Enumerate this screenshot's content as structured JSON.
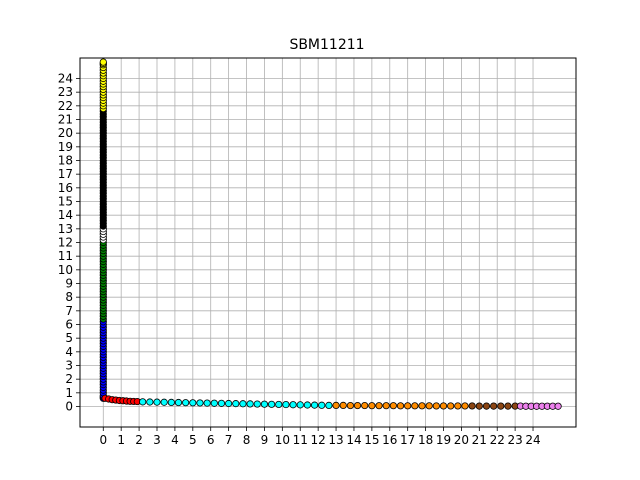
{
  "chart_data": {
    "type": "scatter",
    "title": "SBM11211",
    "xlabel": "",
    "ylabel": "",
    "xlim": [
      -1.3,
      26.4
    ],
    "ylim": [
      -1.5,
      25.5
    ],
    "xticks": [
      0,
      1,
      2,
      3,
      4,
      5,
      6,
      7,
      8,
      9,
      10,
      11,
      12,
      13,
      14,
      15,
      16,
      17,
      18,
      19,
      20,
      21,
      22,
      23,
      24
    ],
    "yticks": [
      0,
      1,
      2,
      3,
      4,
      5,
      6,
      7,
      8,
      9,
      10,
      11,
      12,
      13,
      14,
      15,
      16,
      17,
      18,
      19,
      20,
      21,
      22,
      23,
      24
    ],
    "grid": true,
    "legend": "none",
    "series": [
      {
        "color": "#0000ff",
        "x": [
          0,
          0,
          0,
          0,
          0,
          0,
          0,
          0,
          0,
          0,
          0,
          0,
          0,
          0,
          0,
          0,
          0,
          0,
          0,
          0,
          0,
          0,
          0,
          0,
          0,
          0,
          0,
          0,
          0,
          0
        ],
        "y": [
          0.6,
          0.7,
          0.8,
          1.0,
          1.2,
          1.4,
          1.6,
          1.8,
          2.0,
          2.2,
          2.4,
          2.6,
          2.8,
          3.0,
          3.2,
          3.4,
          3.6,
          3.8,
          4.0,
          4.2,
          4.4,
          4.6,
          4.8,
          5.0,
          5.2,
          5.4,
          5.6,
          5.8,
          6.0,
          6.2
        ]
      },
      {
        "color": "#008000",
        "x": [
          0,
          0,
          0,
          0,
          0,
          0,
          0,
          0,
          0,
          0,
          0,
          0,
          0,
          0,
          0,
          0,
          0,
          0,
          0,
          0,
          0,
          0,
          0,
          0,
          0,
          0,
          0,
          0,
          0
        ],
        "y": [
          6.4,
          6.6,
          6.8,
          7.0,
          7.2,
          7.4,
          7.6,
          7.8,
          8.0,
          8.2,
          8.4,
          8.6,
          8.8,
          9.0,
          9.2,
          9.4,
          9.6,
          9.8,
          10.0,
          10.2,
          10.4,
          10.6,
          10.8,
          11.0,
          11.2,
          11.4,
          11.6,
          11.8,
          12.0
        ]
      },
      {
        "color": "#ffffff",
        "x": [
          0,
          0,
          0,
          0,
          0
        ],
        "y": [
          12.2,
          12.4,
          12.6,
          12.8,
          13.0
        ]
      },
      {
        "color": "#000000",
        "x": [
          0,
          0,
          0,
          0,
          0,
          0,
          0,
          0,
          0,
          0,
          0,
          0,
          0,
          0,
          0,
          0,
          0,
          0,
          0,
          0,
          0,
          0,
          0,
          0,
          0,
          0,
          0,
          0,
          0,
          0,
          0,
          0,
          0,
          0,
          0,
          0,
          0,
          0,
          0,
          0,
          0,
          0,
          0
        ],
        "y": [
          13.2,
          13.4,
          13.6,
          13.8,
          14.0,
          14.2,
          14.4,
          14.6,
          14.8,
          15.0,
          15.2,
          15.4,
          15.6,
          15.8,
          16.0,
          16.2,
          16.4,
          16.6,
          16.8,
          17.0,
          17.2,
          17.4,
          17.6,
          17.8,
          18.0,
          18.2,
          18.4,
          18.6,
          18.8,
          19.0,
          19.2,
          19.4,
          19.6,
          19.8,
          20.0,
          20.2,
          20.4,
          20.6,
          20.8,
          21.0,
          21.2,
          21.4,
          21.6
        ]
      },
      {
        "color": "#ffff00",
        "x": [
          0,
          0,
          0,
          0,
          0,
          0,
          0,
          0,
          0,
          0,
          0,
          0,
          0,
          0,
          0,
          0,
          0,
          0,
          0
        ],
        "y": [
          21.8,
          22.0,
          22.2,
          22.4,
          22.6,
          22.8,
          23.0,
          23.2,
          23.4,
          23.6,
          23.8,
          24.0,
          24.2,
          24.4,
          24.6,
          24.8,
          25.0,
          25.1,
          25.2
        ]
      },
      {
        "color": "#ff0000",
        "x": [
          0.1,
          0.3,
          0.5,
          0.7,
          0.9,
          1.1,
          1.3,
          1.5,
          1.7,
          1.9
        ],
        "y": [
          0.6,
          0.55,
          0.5,
          0.47,
          0.44,
          0.42,
          0.4,
          0.38,
          0.37,
          0.36
        ]
      },
      {
        "color": "#00ffff",
        "x": [
          2.2,
          2.6,
          3.0,
          3.4,
          3.8,
          4.2,
          4.6,
          5.0,
          5.4,
          5.8,
          6.2,
          6.6,
          7.0,
          7.4,
          7.8,
          8.2,
          8.6,
          9.0,
          9.4,
          9.8,
          10.2,
          10.6,
          11.0,
          11.4,
          11.8,
          12.2,
          12.6
        ],
        "y": [
          0.34,
          0.33,
          0.32,
          0.31,
          0.3,
          0.29,
          0.28,
          0.27,
          0.26,
          0.25,
          0.24,
          0.23,
          0.22,
          0.21,
          0.2,
          0.19,
          0.18,
          0.17,
          0.16,
          0.15,
          0.14,
          0.13,
          0.12,
          0.11,
          0.1,
          0.09,
          0.08
        ]
      },
      {
        "color": "#ff8c00",
        "x": [
          13.0,
          13.4,
          13.8,
          14.2,
          14.6,
          15.0,
          15.4,
          15.8,
          16.2,
          16.6,
          17.0,
          17.4,
          17.8,
          18.2,
          18.6,
          19.0,
          19.4,
          19.8,
          20.2
        ],
        "y": [
          0.08,
          0.08,
          0.07,
          0.07,
          0.07,
          0.06,
          0.06,
          0.06,
          0.06,
          0.05,
          0.05,
          0.05,
          0.05,
          0.05,
          0.04,
          0.04,
          0.04,
          0.04,
          0.04
        ]
      },
      {
        "color": "#8b4513",
        "x": [
          20.6,
          21.0,
          21.4,
          21.8,
          22.2,
          22.6,
          23.0
        ],
        "y": [
          0.04,
          0.03,
          0.03,
          0.03,
          0.03,
          0.03,
          0.03
        ]
      },
      {
        "color": "#ee82ee",
        "x": [
          23.3,
          23.6,
          23.9,
          24.2,
          24.5,
          24.8,
          25.1,
          25.4
        ],
        "y": [
          0.03,
          0.02,
          0.02,
          0.02,
          0.02,
          0.02,
          0.02,
          0.02
        ]
      }
    ]
  }
}
